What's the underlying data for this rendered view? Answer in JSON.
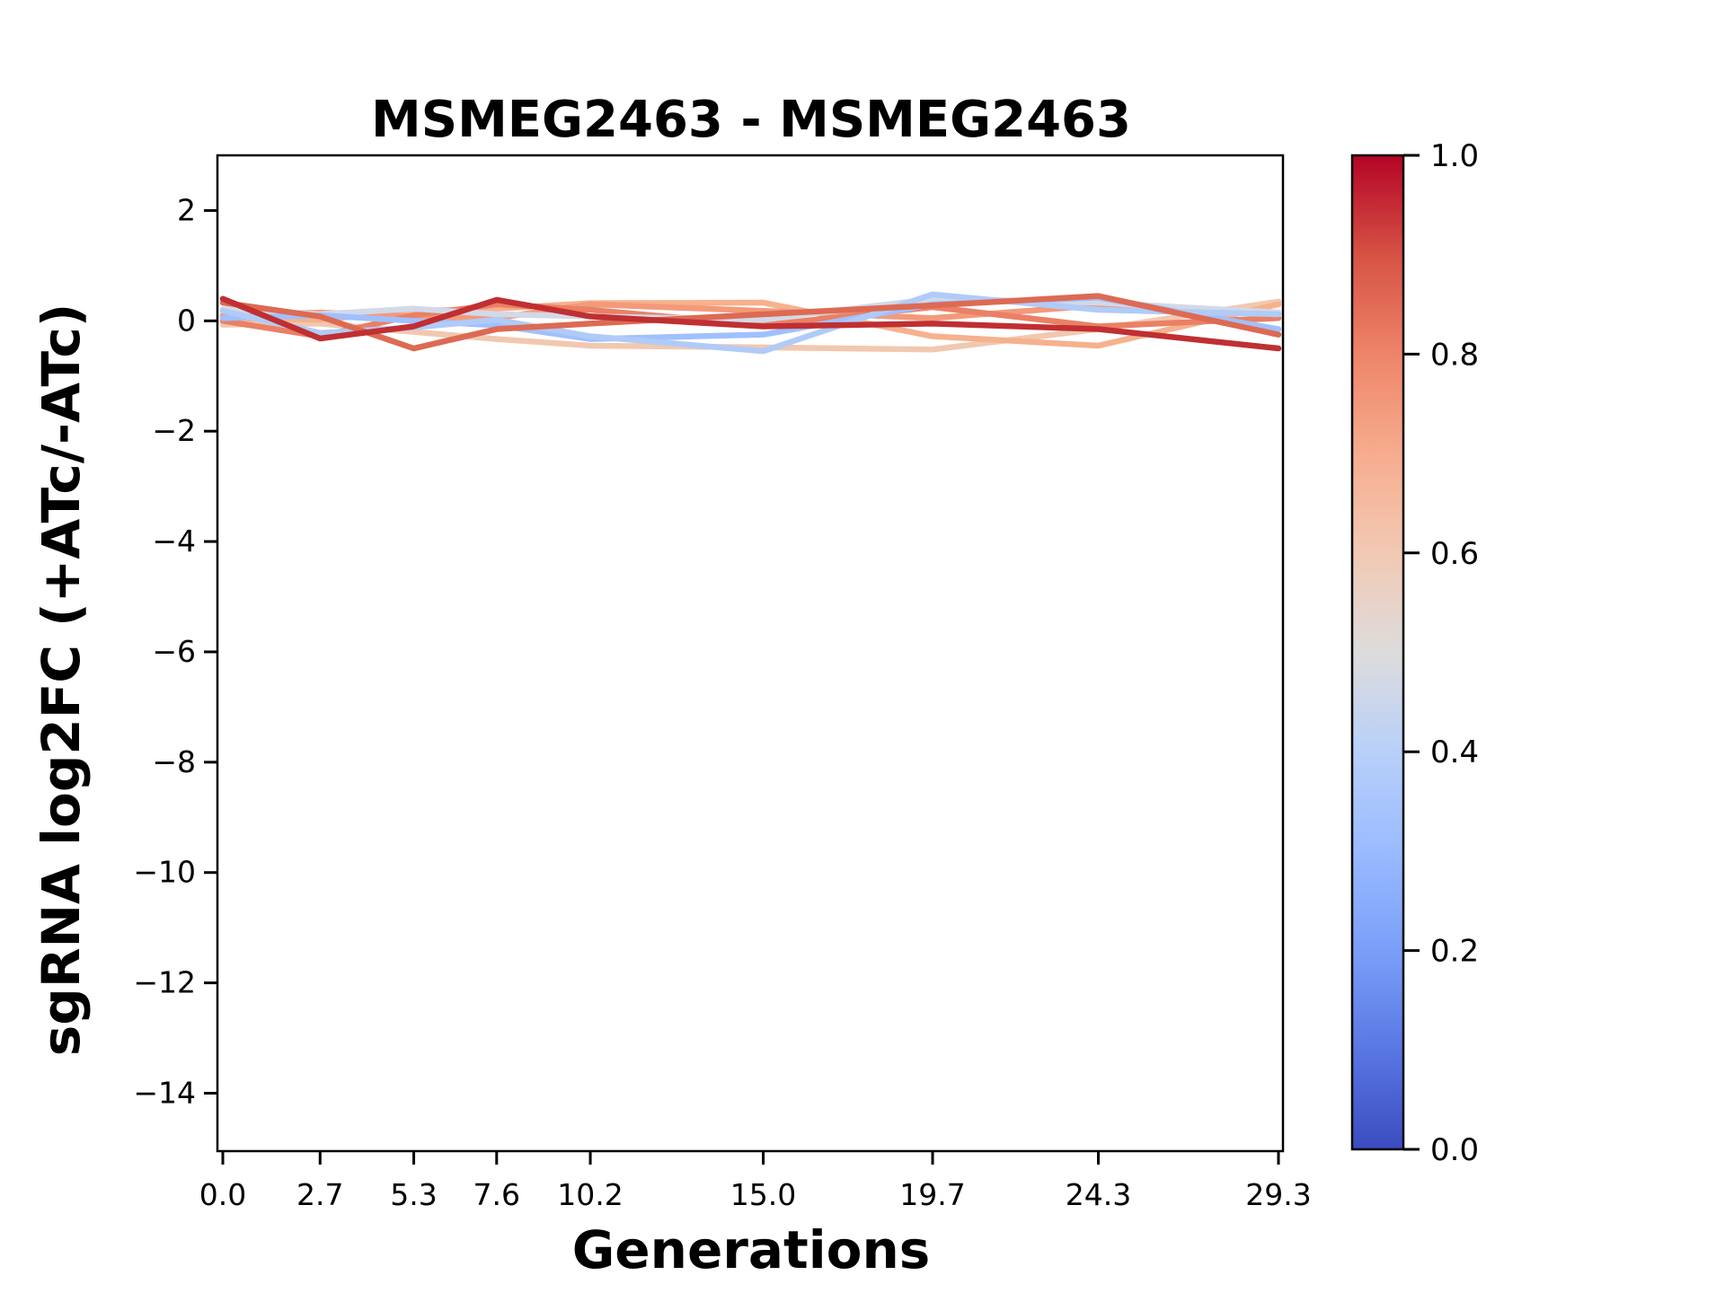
{
  "chart_data": {
    "type": "line",
    "title": "MSMEG2463 - MSMEG2463",
    "xlabel": "Generations",
    "ylabel": "sgRNA log2FC (+ATc/-ATc)",
    "axis_color": "#000000",
    "background_color": "#ffffff",
    "grid": false,
    "xlim": [
      0.0,
      29.3
    ],
    "ylim": [
      -15.05,
      3.0
    ],
    "x": [
      0.0,
      2.7,
      5.3,
      7.6,
      10.2,
      15.0,
      19.7,
      24.3,
      29.3
    ],
    "x_tick_labels": [
      "0.0",
      "2.7",
      "5.3",
      "7.6",
      "10.2",
      "15.0",
      "19.7",
      "24.3",
      "29.3"
    ],
    "y_tick_values": [
      2,
      0,
      -2,
      -4,
      -6,
      -8,
      -10,
      -12,
      -14
    ],
    "y_tick_labels": [
      "2",
      "0",
      "−2",
      "−4",
      "−6",
      "−8",
      "−10",
      "−12",
      "−14"
    ],
    "series": [
      {
        "colormap_position": 0.58,
        "color": "#f1c8b0",
        "values": [
          -0.07,
          -0.05,
          -0.2,
          -0.33,
          -0.45,
          -0.48,
          -0.52,
          -0.15,
          0.35
        ]
      },
      {
        "colormap_position": 0.65,
        "color": "#f6b18d",
        "values": [
          0.05,
          0.02,
          0.18,
          0.22,
          0.32,
          0.33,
          -0.28,
          -0.45,
          0.3
        ]
      },
      {
        "colormap_position": 0.72,
        "color": "#f29a7b",
        "values": [
          0.1,
          0.15,
          0.08,
          0.05,
          0.3,
          0.18,
          0.05,
          0.28,
          0.15
        ]
      },
      {
        "colormap_position": 0.78,
        "color": "#ea8065",
        "values": [
          0.0,
          -0.28,
          0.1,
          0.3,
          0.2,
          -0.08,
          0.25,
          -0.1,
          0.05
        ]
      },
      {
        "colormap_position": 0.46,
        "color": "#d2d9e8",
        "values": [
          0.21,
          0.12,
          0.22,
          0.12,
          0.08,
          0.02,
          0.4,
          0.33,
          0.15
        ]
      },
      {
        "colormap_position": 0.33,
        "color": "#a0c0fe",
        "values": [
          0.05,
          0.1,
          0.0,
          -0.08,
          -0.33,
          -0.25,
          0.3,
          0.42,
          -0.15
        ]
      },
      {
        "colormap_position": 0.38,
        "color": "#b0cbf8",
        "values": [
          0.18,
          -0.22,
          -0.12,
          0.02,
          -0.28,
          -0.55,
          0.48,
          0.2,
          0.12
        ]
      },
      {
        "colormap_position": 0.83,
        "color": "#dd6a53",
        "values": [
          0.33,
          0.08,
          -0.5,
          -0.15,
          -0.05,
          0.12,
          0.28,
          0.45,
          -0.25
        ]
      },
      {
        "colormap_position": 0.93,
        "color": "#c02f32",
        "values": [
          0.4,
          -0.32,
          -0.1,
          0.38,
          0.08,
          -0.1,
          -0.05,
          -0.15,
          -0.5
        ]
      }
    ],
    "colorbar": {
      "colormap": "coolwarm",
      "range": [
        0.0,
        1.0
      ],
      "tick_values": [
        0.0,
        0.2,
        0.4,
        0.6,
        0.8,
        1.0
      ],
      "tick_labels": [
        "0.0",
        "0.2",
        "0.4",
        "0.6",
        "0.8",
        "1.0"
      ],
      "gradient_stops": [
        {
          "value": 0.0,
          "color": "#3b4cc0"
        },
        {
          "value": 0.1,
          "color": "#5977e3"
        },
        {
          "value": 0.2,
          "color": "#7b9ff9"
        },
        {
          "value": 0.3,
          "color": "#9abbff"
        },
        {
          "value": 0.4,
          "color": "#b8d0f9"
        },
        {
          "value": 0.5,
          "color": "#dddcdc"
        },
        {
          "value": 0.6,
          "color": "#f2c9b4"
        },
        {
          "value": 0.7,
          "color": "#f7ac8e"
        },
        {
          "value": 0.8,
          "color": "#ee8468"
        },
        {
          "value": 0.9,
          "color": "#d65244"
        },
        {
          "value": 1.0,
          "color": "#b40426"
        }
      ]
    }
  }
}
